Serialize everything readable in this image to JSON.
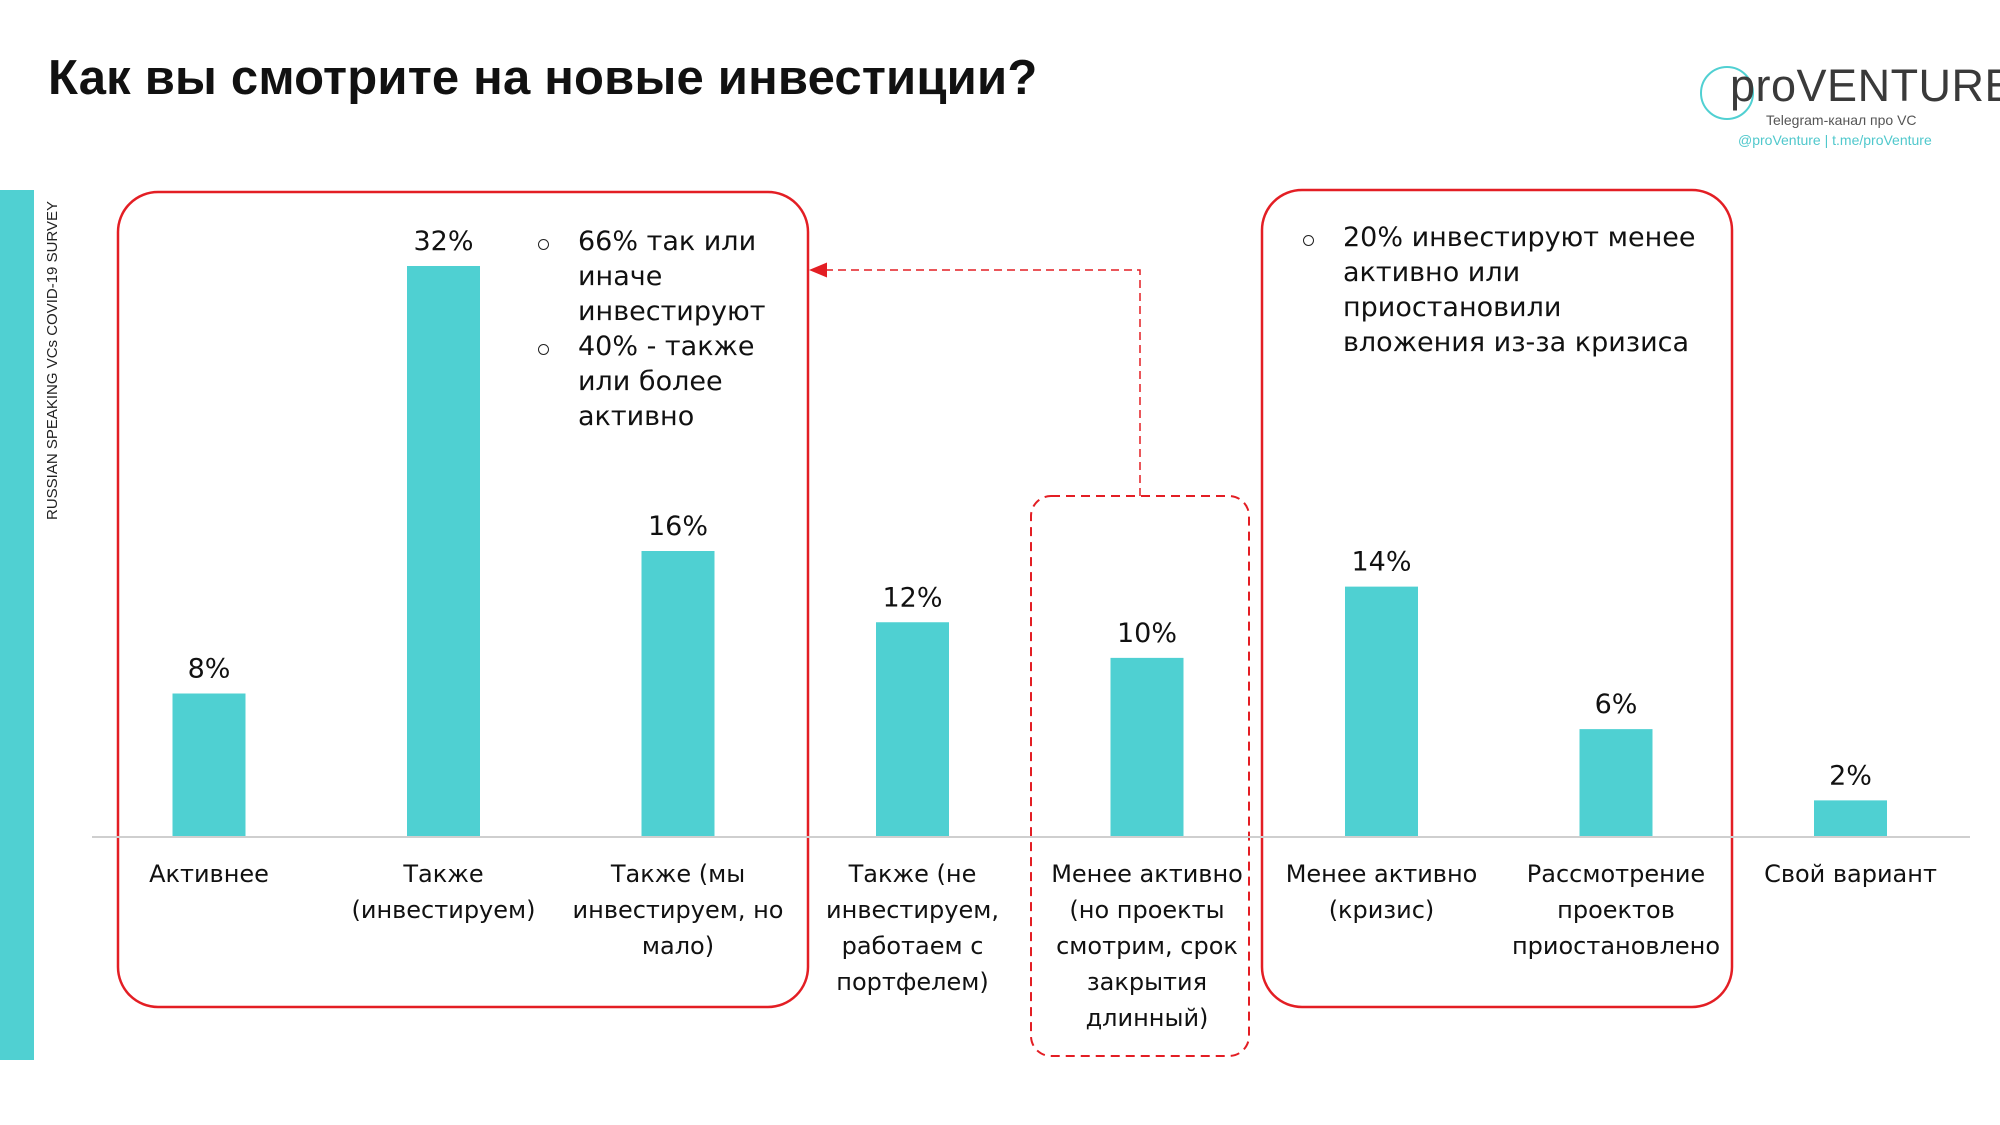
{
  "title": "Как вы смотрите на новые инвестиции?",
  "side_label": "RUSSIAN SPEAKING VCs COVID-19 SURVEY",
  "logo": {
    "text": "proVENTURE",
    "line1": "Telegram-канал про VC",
    "line2": "@proVenture | t.me/proVenture"
  },
  "callouts": {
    "left": [
      "66% так или иначе инвестируют",
      "40% - также или более активно"
    ],
    "right": [
      "20% инвестируют менее активно или приостановили вложения из-за кризиса"
    ]
  },
  "colors": {
    "bar": "#4fd0d2",
    "accent": "#e31e24",
    "axis": "#cfcfcf"
  },
  "chart_data": {
    "type": "bar",
    "categories": [
      "Активнее",
      "Также (инвестируем)",
      "Также (мы инвестируем, но мало)",
      "Также (не инвестируем, работаем с портфелем)",
      "Менее активно (но проекты смотрим, срок закрытия длинный)",
      "Менее активно (кризис)",
      "Рассмотрение проектов приостановлено",
      "Свой вариант"
    ],
    "category_lines": [
      [
        "Активнее"
      ],
      [
        "Также",
        "(инвестируем)"
      ],
      [
        "Также (мы",
        "инвестируем, но",
        "мало)"
      ],
      [
        "Также (не",
        "инвестируем,",
        "работаем с",
        "портфелем)"
      ],
      [
        "Менее активно",
        "(но проекты",
        "смотрим, срок",
        "закрытия",
        "длинный)"
      ],
      [
        "Менее активно",
        "(кризис)"
      ],
      [
        "Рассмотрение",
        "проектов",
        "приостановлено"
      ],
      [
        "Свой вариант"
      ]
    ],
    "values": [
      8,
      32,
      16,
      12,
      10,
      14,
      6,
      2
    ],
    "data_labels": [
      "8%",
      "32%",
      "16%",
      "12%",
      "10%",
      "14%",
      "6%",
      "2%"
    ],
    "ylim": [
      0,
      32
    ],
    "grid": false,
    "legend": "none"
  }
}
